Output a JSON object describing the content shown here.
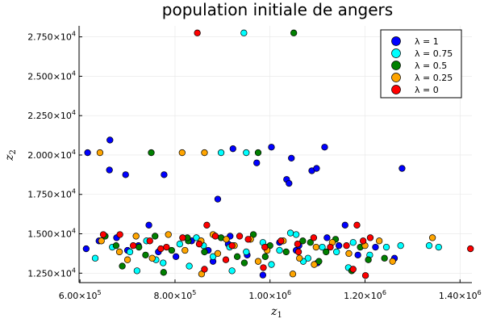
{
  "chart_data": {
    "type": "scatter",
    "title": "population initiale de angers",
    "xlabel": "z",
    "xlabel_sub": "1",
    "ylabel": "z",
    "ylabel_sub": "2",
    "xlim": [
      598000,
      1425000
    ],
    "ylim": [
      11900,
      28200
    ],
    "grid": true,
    "legend_position": "top-right",
    "x_ticks": [
      {
        "value": 600000,
        "mantissa": "6.00",
        "base": "×10",
        "exp": "5"
      },
      {
        "value": 800000,
        "mantissa": "8.00",
        "base": "×10",
        "exp": "5"
      },
      {
        "value": 1000000,
        "mantissa": "1.00",
        "base": "×10",
        "exp": "6"
      },
      {
        "value": 1200000,
        "mantissa": "1.20",
        "base": "×10",
        "exp": "6"
      },
      {
        "value": 1400000,
        "mantissa": "1.40",
        "base": "×10",
        "exp": "6"
      }
    ],
    "y_ticks": [
      {
        "value": 12500,
        "mantissa": "1.250",
        "base": "×10",
        "exp": "4"
      },
      {
        "value": 15000,
        "mantissa": "1.500",
        "base": "×10",
        "exp": "4"
      },
      {
        "value": 17500,
        "mantissa": "1.750",
        "base": "×10",
        "exp": "4"
      },
      {
        "value": 20000,
        "mantissa": "2.000",
        "base": "×10",
        "exp": "4"
      },
      {
        "value": 22500,
        "mantissa": "2.250",
        "base": "×10",
        "exp": "4"
      },
      {
        "value": 25000,
        "mantissa": "2.500",
        "base": "×10",
        "exp": "4"
      },
      {
        "value": 27500,
        "mantissa": "2.750",
        "base": "×10",
        "exp": "4"
      }
    ],
    "series": [
      {
        "name": "λ = 1",
        "color": "#0000ff",
        "points": [
          [
            616000,
            20150
          ],
          [
            663000,
            20950
          ],
          [
            662000,
            19050
          ],
          [
            696000,
            18750
          ],
          [
            777000,
            18750
          ],
          [
            890000,
            17200
          ],
          [
            922000,
            20400
          ],
          [
            972000,
            19500
          ],
          [
            1003000,
            20500
          ],
          [
            1045000,
            19800
          ],
          [
            1035000,
            18450
          ],
          [
            1040000,
            18200
          ],
          [
            1088000,
            19000
          ],
          [
            1098000,
            19150
          ],
          [
            1115000,
            20500
          ],
          [
            1278000,
            19150
          ],
          [
            745000,
            15550
          ],
          [
            1158000,
            15550
          ],
          [
            613000,
            14050
          ],
          [
            640000,
            14550
          ],
          [
            677000,
            14750
          ],
          [
            723000,
            14250
          ],
          [
            765000,
            13850
          ],
          [
            802000,
            13550
          ],
          [
            835000,
            14550
          ],
          [
            870000,
            13950
          ],
          [
            912000,
            14350
          ],
          [
            952000,
            13650
          ],
          [
            995000,
            14150
          ],
          [
            1020000,
            14450
          ],
          [
            1055000,
            13950
          ],
          [
            1100000,
            13150
          ],
          [
            1145000,
            14250
          ],
          [
            1185000,
            13650
          ],
          [
            1222000,
            14150
          ],
          [
            1262000,
            13450
          ],
          [
            880000,
            13250
          ],
          [
            985000,
            12380
          ],
          [
            1120000,
            14750
          ],
          [
            700000,
            13950
          ],
          [
            916000,
            14850
          ],
          [
            1061000,
            14250
          ]
        ]
      },
      {
        "name": "λ = 0.75",
        "color": "#00ffff",
        "points": [
          [
            945000,
            27750
          ],
          [
            897000,
            20150
          ],
          [
            950000,
            20150
          ],
          [
            632000,
            13450
          ],
          [
            668000,
            14150
          ],
          [
            705000,
            13850
          ],
          [
            740000,
            14550
          ],
          [
            775000,
            13150
          ],
          [
            810000,
            14350
          ],
          [
            845000,
            14750
          ],
          [
            880000,
            13550
          ],
          [
            915000,
            14150
          ],
          [
            950000,
            13850
          ],
          [
            985000,
            14450
          ],
          [
            1020000,
            13950
          ],
          [
            1043000,
            15050
          ],
          [
            1055000,
            14950
          ],
          [
            1080000,
            13450
          ],
          [
            1110000,
            14150
          ],
          [
            1140000,
            13850
          ],
          [
            1175000,
            14450
          ],
          [
            1210000,
            13650
          ],
          [
            1245000,
            14150
          ],
          [
            1275000,
            14250
          ],
          [
            1335000,
            14250
          ],
          [
            1355000,
            14150
          ],
          [
            720000,
            12650
          ],
          [
            830000,
            12950
          ],
          [
            920000,
            12650
          ],
          [
            1003000,
            13050
          ],
          [
            1165000,
            12850
          ],
          [
            760000,
            13350
          ],
          [
            860000,
            14250
          ],
          [
            1070000,
            13250
          ]
        ]
      },
      {
        "name": "λ = 0.5",
        "color": "#008000",
        "points": [
          [
            1050000,
            27750
          ],
          [
            750000,
            20150
          ],
          [
            975000,
            20150
          ],
          [
            653000,
            14850
          ],
          [
            689000,
            12950
          ],
          [
            724000,
            14150
          ],
          [
            758000,
            14850
          ],
          [
            793000,
            13950
          ],
          [
            828000,
            14550
          ],
          [
            862000,
            13850
          ],
          [
            897000,
            14750
          ],
          [
            931000,
            13550
          ],
          [
            965000,
            14950
          ],
          [
            1000000,
            14250
          ],
          [
            1034000,
            13850
          ],
          [
            1069000,
            14550
          ],
          [
            1103000,
            13250
          ],
          [
            1138000,
            14650
          ],
          [
            1172000,
            12650
          ],
          [
            1207000,
            13350
          ],
          [
            1241000,
            13450
          ],
          [
            676000,
            14250
          ],
          [
            776000,
            12550
          ],
          [
            946000,
            13150
          ],
          [
            1118000,
            13850
          ],
          [
            1190000,
            14150
          ],
          [
            826000,
            14750
          ],
          [
            990000,
            13550
          ],
          [
            1085000,
            14450
          ],
          [
            738000,
            13650
          ]
        ]
      },
      {
        "name": "λ = 0.25",
        "color": "#ffa500",
        "points": [
          [
            642000,
            20150
          ],
          [
            815000,
            20150
          ],
          [
            862000,
            20150
          ],
          [
            1342000,
            14750
          ],
          [
            1258000,
            13250
          ],
          [
            645000,
            14550
          ],
          [
            683000,
            13850
          ],
          [
            718000,
            14850
          ],
          [
            752000,
            13450
          ],
          [
            786000,
            14950
          ],
          [
            821000,
            13950
          ],
          [
            855000,
            14550
          ],
          [
            890000,
            13750
          ],
          [
            925000,
            14250
          ],
          [
            959000,
            14650
          ],
          [
            994000,
            13950
          ],
          [
            1028000,
            14550
          ],
          [
            1062000,
            13450
          ],
          [
            1097000,
            14150
          ],
          [
            1131000,
            14450
          ],
          [
            1166000,
            13750
          ],
          [
            1200000,
            14250
          ],
          [
            1230000,
            14550
          ],
          [
            1048000,
            12450
          ],
          [
            1093000,
            13050
          ],
          [
            908000,
            14650
          ],
          [
            856000,
            12450
          ],
          [
            700000,
            13350
          ],
          [
            975000,
            13250
          ],
          [
            880000,
            14950
          ]
        ]
      },
      {
        "name": "λ = 0",
        "color": "#ff0000",
        "points": [
          [
            847000,
            27750
          ],
          [
            867000,
            15550
          ],
          [
            1183000,
            15550
          ],
          [
            649000,
            14950
          ],
          [
            684000,
            14950
          ],
          [
            712000,
            14250
          ],
          [
            747000,
            14550
          ],
          [
            782000,
            14150
          ],
          [
            816000,
            14750
          ],
          [
            851000,
            14350
          ],
          [
            885000,
            14850
          ],
          [
            920000,
            14250
          ],
          [
            954000,
            14650
          ],
          [
            989000,
            14150
          ],
          [
            1023000,
            14550
          ],
          [
            1058000,
            14350
          ],
          [
            1092000,
            14750
          ],
          [
            1127000,
            14150
          ],
          [
            1161000,
            14250
          ],
          [
            1196000,
            14550
          ],
          [
            1211000,
            14750
          ],
          [
            1422000,
            14050
          ],
          [
            1201000,
            12350
          ],
          [
            1175000,
            12750
          ],
          [
            862000,
            12750
          ],
          [
            907000,
            13350
          ],
          [
            986000,
            12850
          ],
          [
            1060000,
            13850
          ],
          [
            770000,
            14050
          ],
          [
            936000,
            14850
          ]
        ]
      }
    ]
  }
}
